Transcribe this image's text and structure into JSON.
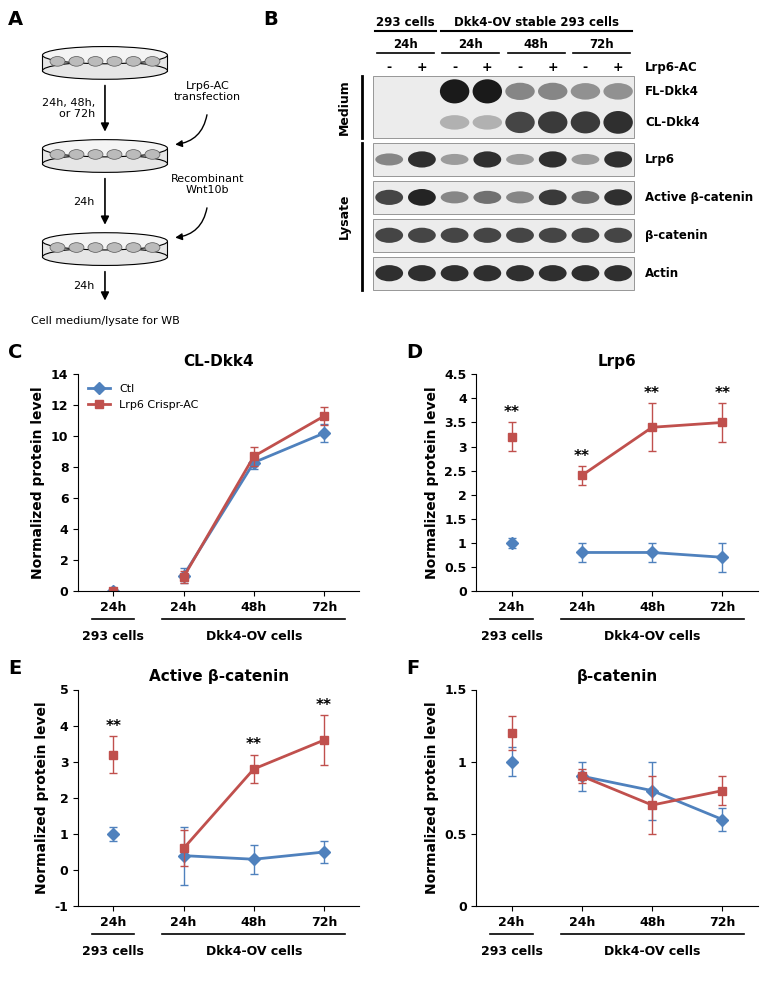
{
  "chart_data": [
    {
      "type": "line",
      "panel": "C",
      "title": "CL-Dkk4",
      "y_label": "Normalized protein level",
      "categories": [
        "24h",
        "24h",
        "48h",
        "72h"
      ],
      "groups": [
        {
          "name": "293 cells",
          "count": 1
        },
        {
          "name": "Dkk4-OV cells",
          "count": 3
        }
      ],
      "ylim": [
        0,
        14
      ],
      "yticks": [
        0,
        2,
        4,
        6,
        8,
        10,
        12,
        14
      ],
      "legend": "upper left",
      "series": [
        {
          "name": "Ctl",
          "color": "#4F81BD",
          "marker": "diamond",
          "values": [
            0,
            1.0,
            8.3,
            10.2
          ],
          "errors": [
            0,
            0.5,
            0.4,
            0.6
          ]
        },
        {
          "name": "Lrp6 Crispr-AC",
          "color": "#C0504D",
          "marker": "square",
          "values": [
            0,
            0.9,
            8.7,
            11.3
          ],
          "errors": [
            0,
            0.4,
            0.6,
            0.6
          ]
        }
      ]
    },
    {
      "type": "line",
      "panel": "D",
      "title": "Lrp6",
      "y_label": "Normalized protein level",
      "categories": [
        "24h",
        "24h",
        "48h",
        "72h"
      ],
      "groups": [
        {
          "name": "293 cells",
          "count": 1
        },
        {
          "name": "Dkk4-OV cells",
          "count": 3
        }
      ],
      "ylim": [
        0,
        4.5
      ],
      "yticks": [
        0,
        0.5,
        1,
        1.5,
        2,
        2.5,
        3,
        3.5,
        4,
        4.5
      ],
      "significance": {
        "label": "**",
        "indices": [
          0,
          1,
          2,
          3
        ]
      },
      "series": [
        {
          "color": "#4F81BD",
          "marker": "diamond",
          "values": [
            1.0,
            0.8,
            0.8,
            0.7
          ],
          "errors": [
            0.1,
            0.2,
            0.2,
            0.3
          ]
        },
        {
          "color": "#C0504D",
          "marker": "square",
          "values": [
            3.2,
            2.4,
            3.4,
            3.5
          ],
          "errors": [
            0.3,
            0.2,
            0.5,
            0.4
          ]
        }
      ]
    },
    {
      "type": "line",
      "panel": "E",
      "title": "Active β-catenin",
      "y_label": "Normalized protein level",
      "categories": [
        "24h",
        "24h",
        "48h",
        "72h"
      ],
      "groups": [
        {
          "name": "293 cells",
          "count": 1
        },
        {
          "name": "Dkk4-OV cells",
          "count": 3
        }
      ],
      "ylim": [
        -1,
        5
      ],
      "yticks": [
        -1,
        0,
        1,
        2,
        3,
        4,
        5
      ],
      "significance": {
        "label": "**",
        "indices": [
          0,
          2,
          3
        ]
      },
      "series": [
        {
          "color": "#4F81BD",
          "marker": "diamond",
          "values": [
            1.0,
            0.4,
            0.3,
            0.5
          ],
          "errors": [
            0.2,
            0.8,
            0.4,
            0.3
          ]
        },
        {
          "color": "#C0504D",
          "marker": "square",
          "values": [
            3.2,
            0.6,
            2.8,
            3.6
          ],
          "errors": [
            0.5,
            0.5,
            0.4,
            0.7
          ]
        }
      ]
    },
    {
      "type": "line",
      "panel": "F",
      "title": "β-catenin",
      "y_label": "Normalized protein level",
      "categories": [
        "24h",
        "24h",
        "48h",
        "72h"
      ],
      "groups": [
        {
          "name": "293 cells",
          "count": 1
        },
        {
          "name": "Dkk4-OV cells",
          "count": 3
        }
      ],
      "ylim": [
        0,
        1.5
      ],
      "yticks": [
        0,
        0.5,
        1,
        1.5
      ],
      "series": [
        {
          "color": "#4F81BD",
          "marker": "diamond",
          "values": [
            1.0,
            0.9,
            0.8,
            0.6
          ],
          "errors": [
            0.1,
            0.1,
            0.2,
            0.08
          ]
        },
        {
          "color": "#C0504D",
          "marker": "square",
          "values": [
            1.2,
            0.9,
            0.7,
            0.8
          ],
          "errors": [
            0.12,
            0.05,
            0.2,
            0.1
          ]
        }
      ]
    }
  ],
  "diagram": {
    "panel": "A",
    "wait_label": [
      "24h, 48h,",
      "or 72h"
    ],
    "treatment_label": [
      "Lrp6-AC",
      "transfection"
    ],
    "wait_label_2": "24h",
    "addition_label": [
      "Recombinant",
      "Wnt10b"
    ],
    "wait_label_3": "24h",
    "end_label": "Cell medium/lysate for WB"
  },
  "blot": {
    "panel": "B",
    "groups": [
      {
        "name": "293 cells",
        "timepoints": [
          "24h"
        ]
      },
      {
        "name": "Dkk4-OV stable 293 cells",
        "timepoints": [
          "24h",
          "48h",
          "72h"
        ]
      }
    ],
    "treatment": "Lrp6-AC",
    "lane_signs": [
      "-",
      "+",
      "-",
      "+",
      "-",
      "+",
      "-",
      "+"
    ],
    "sections": [
      {
        "name": "Medium",
        "rows": [
          {
            "label": "FL-Dkk4",
            "intensity": [
              0,
              0,
              1.0,
              1.0,
              0.5,
              0.5,
              0.45,
              0.45
            ]
          },
          {
            "label": "CL-Dkk4",
            "intensity": [
              0,
              0,
              0.3,
              0.3,
              0.8,
              0.85,
              0.85,
              0.9
            ]
          }
        ]
      },
      {
        "name": "Lysate",
        "rows": [
          {
            "label": "Lrp6",
            "intensity": [
              0.5,
              0.9,
              0.4,
              0.9,
              0.4,
              0.9,
              0.4,
              0.9
            ]
          },
          {
            "label": "Active β-catenin",
            "intensity": [
              0.8,
              0.95,
              0.5,
              0.6,
              0.5,
              0.85,
              0.6,
              0.9
            ]
          },
          {
            "label": "β-catenin",
            "intensity": [
              0.8,
              0.8,
              0.8,
              0.8,
              0.8,
              0.8,
              0.8,
              0.8
            ]
          },
          {
            "label": "Actin",
            "intensity": [
              0.9,
              0.9,
              0.9,
              0.9,
              0.9,
              0.9,
              0.9,
              0.9
            ]
          }
        ]
      }
    ]
  }
}
